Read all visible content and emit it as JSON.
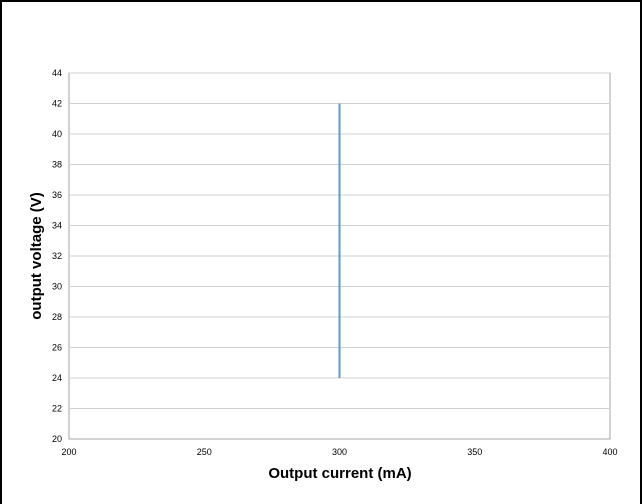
{
  "chart_data": {
    "type": "line",
    "title": "",
    "xlabel": "Output current (mA)",
    "ylabel": "output voltage (V)",
    "xlim": [
      200,
      400
    ],
    "ylim": [
      20,
      44
    ],
    "xticks": [
      "200",
      "250",
      "300",
      "350",
      "400"
    ],
    "yticks": [
      "20",
      "22",
      "24",
      "26",
      "28",
      "30",
      "32",
      "34",
      "36",
      "38",
      "40",
      "42",
      "44"
    ],
    "grid": "horizontal",
    "legend": "none",
    "series_color": "#5b9bd5",
    "series": [
      {
        "x": [
          300,
          300
        ],
        "y": [
          24,
          42
        ]
      }
    ]
  }
}
